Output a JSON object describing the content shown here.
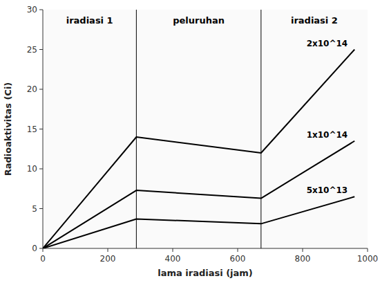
{
  "chart_data": {
    "type": "line",
    "xlabel": "lama iradiasi (jam)",
    "ylabel": "Radioaktivitas (Ci)",
    "xlim": [
      0,
      1000
    ],
    "ylim": [
      0,
      30
    ],
    "xticks": [
      0,
      200,
      400,
      600,
      800,
      1000
    ],
    "yticks": [
      0,
      5,
      10,
      15,
      20,
      25,
      30
    ],
    "grid": false,
    "color": "#000000",
    "x": [
      0,
      288,
      288,
      672,
      672,
      960
    ],
    "series": [
      {
        "name": "2x10^14",
        "values": [
          0,
          14.0,
          14.0,
          12.0,
          12.0,
          25.0
        ]
      },
      {
        "name": "1x10^14",
        "values": [
          0,
          7.3,
          7.3,
          6.3,
          6.3,
          13.5
        ]
      },
      {
        "name": "5x10^13",
        "values": [
          0,
          3.7,
          3.7,
          3.1,
          3.1,
          6.5
        ]
      }
    ],
    "vlines": [
      288,
      672
    ],
    "annotations": [
      "iradiasi 1",
      "peluruhan",
      "iradiasi 2"
    ]
  }
}
